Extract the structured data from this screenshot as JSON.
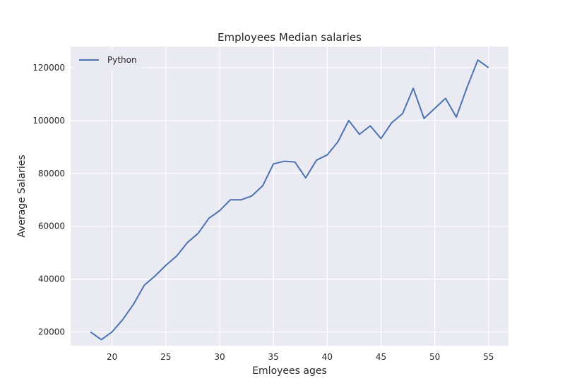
{
  "chart_data": {
    "type": "line",
    "title": "Employees Median salaries",
    "xlabel": "Emloyees ages",
    "ylabel": "Average Salaries",
    "x": [
      18,
      19,
      20,
      21,
      22,
      23,
      24,
      25,
      26,
      27,
      28,
      29,
      30,
      31,
      32,
      33,
      34,
      35,
      36,
      37,
      38,
      39,
      40,
      41,
      42,
      43,
      44,
      45,
      46,
      47,
      48,
      49,
      50,
      51,
      52,
      53,
      54,
      55
    ],
    "series": [
      {
        "name": "Python",
        "color": "#4c72b0",
        "values": [
          20000,
          17100,
          20000,
          24700,
          30500,
          37700,
          41200,
          45200,
          48700,
          53800,
          57300,
          63000,
          65900,
          70000,
          70000,
          71500,
          75300,
          83600,
          84600,
          84300,
          78300,
          85000,
          87000,
          92000,
          100000,
          94800,
          98000,
          93200,
          99200,
          102600,
          112200,
          100800,
          104600,
          108400,
          101300,
          112600,
          122900,
          120000
        ]
      }
    ],
    "xlim": [
      16.15,
      56.85
    ],
    "ylim": [
      14800,
      128000
    ],
    "xticks": [
      20,
      25,
      30,
      35,
      40,
      45,
      50,
      55
    ],
    "yticks": [
      20000,
      40000,
      60000,
      80000,
      100000,
      120000
    ],
    "grid": true,
    "legend_position": "upper-left",
    "colors": {
      "background": "#eaeaf2",
      "grid": "#ffffff"
    }
  }
}
